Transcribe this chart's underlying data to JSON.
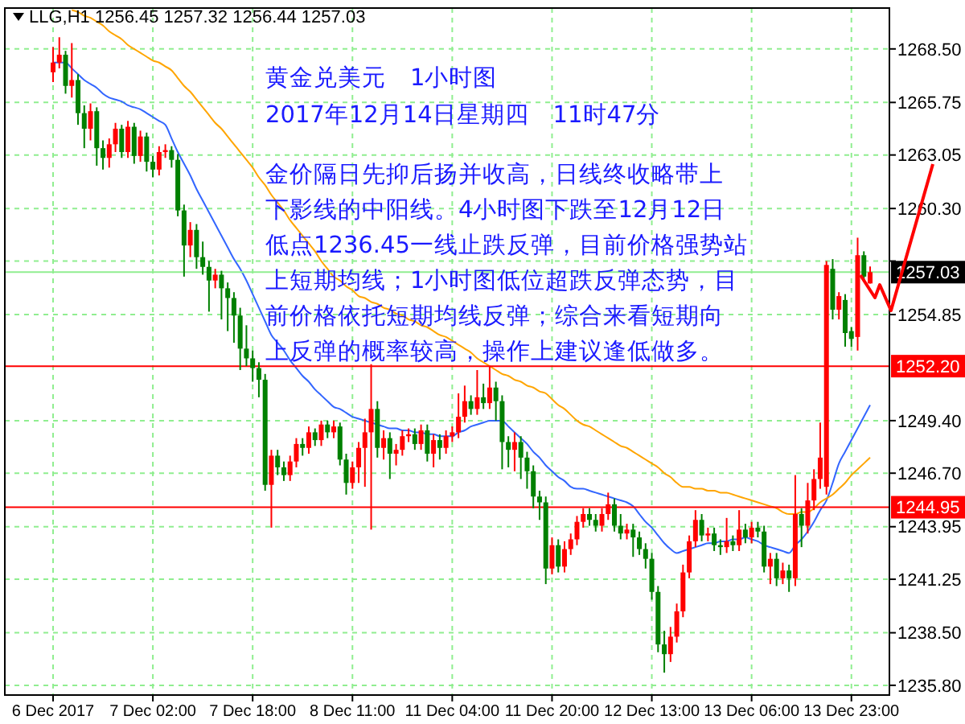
{
  "chart_data": {
    "type": "candlestick",
    "title": "LLG,H1  1256.45 1257.32 1256.44 1257.03",
    "categories": [
      "6 Dec 2017",
      null,
      null,
      null,
      null,
      null,
      null,
      null,
      null,
      null,
      null,
      null,
      null,
      null,
      null,
      null,
      "7 Dec 02:00",
      null,
      null,
      null,
      null,
      null,
      null,
      null,
      null,
      null,
      null,
      null,
      null,
      null,
      null,
      null,
      "7 Dec 18:00",
      null,
      null,
      null,
      null,
      null,
      null,
      null,
      null,
      null,
      null,
      null,
      null,
      null,
      null,
      null,
      "8 Dec 11:00",
      null,
      null,
      null,
      null,
      null,
      null,
      null,
      null,
      null,
      null,
      null,
      null,
      null,
      null,
      null,
      "11 Dec 04:00",
      null,
      null,
      null,
      null,
      null,
      null,
      null,
      null,
      null,
      null,
      null,
      null,
      null,
      null,
      null,
      "11 Dec 20:00",
      null,
      null,
      null,
      null,
      null,
      null,
      null,
      null,
      null,
      null,
      null,
      null,
      null,
      null,
      null,
      "12 Dec 13:00",
      null,
      null,
      null,
      null,
      null,
      null,
      null,
      null,
      null,
      null,
      null,
      null,
      null,
      null,
      null,
      "13 Dec 06:00",
      null,
      null,
      null,
      null,
      null,
      null,
      null,
      null,
      null,
      null,
      null,
      null,
      null,
      null,
      null,
      "13 Dec 23:00",
      null,
      null,
      null
    ],
    "ohlc": [
      [
        1267.3,
        1268.6,
        1266.8,
        1267.8
      ],
      [
        1267.8,
        1269.1,
        1267.5,
        1268.2
      ],
      [
        1268.2,
        1268.4,
        1266.2,
        1266.6
      ],
      [
        1266.6,
        1268.8,
        1266.0,
        1266.9
      ],
      [
        1266.9,
        1267.2,
        1264.6,
        1265.2
      ],
      [
        1265.2,
        1265.6,
        1263.4,
        1264.4
      ],
      [
        1264.4,
        1265.7,
        1263.8,
        1265.3
      ],
      [
        1265.3,
        1265.5,
        1262.5,
        1263.4
      ],
      [
        1263.4,
        1263.8,
        1262.3,
        1262.9
      ],
      [
        1262.9,
        1263.9,
        1262.4,
        1263.6
      ],
      [
        1263.6,
        1264.7,
        1263.2,
        1264.4
      ],
      [
        1264.4,
        1264.6,
        1262.9,
        1263.2
      ],
      [
        1263.2,
        1264.8,
        1262.9,
        1264.5
      ],
      [
        1264.5,
        1264.7,
        1262.6,
        1263.0
      ],
      [
        1263.0,
        1264.3,
        1262.7,
        1264.0
      ],
      [
        1264.0,
        1264.2,
        1262.2,
        1262.7
      ],
      [
        1262.7,
        1263.0,
        1261.9,
        1262.3
      ],
      [
        1262.3,
        1263.5,
        1262.0,
        1263.2
      ],
      [
        1263.2,
        1263.6,
        1262.9,
        1263.3
      ],
      [
        1263.3,
        1263.5,
        1262.4,
        1262.8
      ],
      [
        1262.8,
        1263.1,
        1259.9,
        1260.2
      ],
      [
        1260.2,
        1260.5,
        1256.8,
        1258.4
      ],
      [
        1258.4,
        1259.6,
        1257.8,
        1259.2
      ],
      [
        1259.2,
        1259.5,
        1257.2,
        1257.8
      ],
      [
        1257.8,
        1258.6,
        1256.9,
        1257.3
      ],
      [
        1257.3,
        1257.6,
        1255.0,
        1256.6
      ],
      [
        1256.6,
        1257.2,
        1256.2,
        1256.9
      ],
      [
        1256.9,
        1257.1,
        1254.6,
        1256.2
      ],
      [
        1256.2,
        1256.5,
        1254.0,
        1255.7
      ],
      [
        1255.7,
        1256.0,
        1253.4,
        1254.8
      ],
      [
        1254.8,
        1255.2,
        1252.0,
        1253.1
      ],
      [
        1253.1,
        1254.3,
        1252.2,
        1252.6
      ],
      [
        1252.6,
        1253.0,
        1251.4,
        1252.1
      ],
      [
        1252.1,
        1252.4,
        1250.6,
        1251.5
      ],
      [
        1251.5,
        1251.8,
        1245.8,
        1246.1
      ],
      [
        1246.1,
        1247.9,
        1243.9,
        1247.6
      ],
      [
        1247.6,
        1247.9,
        1246.6,
        1247.0
      ],
      [
        1247.0,
        1247.3,
        1246.3,
        1246.6
      ],
      [
        1246.6,
        1247.6,
        1246.3,
        1247.3
      ],
      [
        1247.3,
        1248.5,
        1247.0,
        1248.2
      ],
      [
        1248.2,
        1248.5,
        1247.6,
        1248.0
      ],
      [
        1248.0,
        1249.1,
        1247.7,
        1248.8
      ],
      [
        1248.8,
        1249.0,
        1248.1,
        1248.4
      ],
      [
        1248.4,
        1249.4,
        1248.1,
        1249.2
      ],
      [
        1249.2,
        1249.4,
        1248.5,
        1248.8
      ],
      [
        1248.8,
        1249.4,
        1248.5,
        1249.1
      ],
      [
        1249.1,
        1249.3,
        1247.1,
        1247.4
      ],
      [
        1247.4,
        1247.7,
        1245.6,
        1246.2
      ],
      [
        1246.2,
        1247.3,
        1245.9,
        1247.0
      ],
      [
        1247.0,
        1248.3,
        1246.2,
        1248.0
      ],
      [
        1248.0,
        1249.5,
        1246.0,
        1248.8
      ],
      [
        1248.8,
        1252.3,
        1243.8,
        1250.0
      ],
      [
        1250.0,
        1250.4,
        1247.5,
        1248.0
      ],
      [
        1248.0,
        1248.9,
        1247.4,
        1248.5
      ],
      [
        1248.5,
        1248.8,
        1246.4,
        1247.7
      ],
      [
        1247.7,
        1248.2,
        1247.1,
        1247.9
      ],
      [
        1247.9,
        1248.9,
        1247.6,
        1248.6
      ],
      [
        1248.6,
        1249.0,
        1248.3,
        1248.7
      ],
      [
        1248.7,
        1249.0,
        1247.9,
        1248.2
      ],
      [
        1248.2,
        1249.2,
        1247.9,
        1248.9
      ],
      [
        1248.9,
        1249.2,
        1247.3,
        1247.7
      ],
      [
        1247.7,
        1248.7,
        1247.0,
        1248.4
      ],
      [
        1248.4,
        1248.7,
        1247.4,
        1248.0
      ],
      [
        1248.0,
        1248.9,
        1247.7,
        1248.6
      ],
      [
        1248.6,
        1249.1,
        1248.3,
        1248.8
      ],
      [
        1248.8,
        1250.8,
        1248.5,
        1249.6
      ],
      [
        1249.6,
        1251.2,
        1249.3,
        1250.4
      ],
      [
        1250.4,
        1250.7,
        1249.7,
        1250.0
      ],
      [
        1250.0,
        1252.0,
        1249.7,
        1250.6
      ],
      [
        1250.6,
        1251.3,
        1250.0,
        1250.3
      ],
      [
        1250.3,
        1252.2,
        1250.0,
        1251.1
      ],
      [
        1251.1,
        1251.4,
        1249.4,
        1250.4
      ],
      [
        1250.4,
        1250.7,
        1246.9,
        1248.3
      ],
      [
        1248.3,
        1248.6,
        1247.0,
        1247.9
      ],
      [
        1247.9,
        1248.8,
        1246.8,
        1248.3
      ],
      [
        1248.3,
        1248.6,
        1246.4,
        1247.5
      ],
      [
        1247.5,
        1247.8,
        1245.9,
        1246.8
      ],
      [
        1246.8,
        1247.1,
        1244.9,
        1245.5
      ],
      [
        1245.5,
        1245.8,
        1244.3,
        1245.2
      ],
      [
        1245.2,
        1245.5,
        1241.0,
        1241.8
      ],
      [
        1241.8,
        1243.4,
        1241.5,
        1243.0
      ],
      [
        1243.0,
        1243.3,
        1241.6,
        1241.9
      ],
      [
        1241.9,
        1243.2,
        1241.6,
        1242.8
      ],
      [
        1242.8,
        1243.6,
        1242.5,
        1243.3
      ],
      [
        1243.3,
        1244.5,
        1243.0,
        1244.2
      ],
      [
        1244.2,
        1244.9,
        1243.9,
        1244.6
      ],
      [
        1244.6,
        1244.9,
        1244.0,
        1244.3
      ],
      [
        1244.3,
        1244.6,
        1243.7,
        1244.0
      ],
      [
        1244.0,
        1244.9,
        1243.7,
        1244.6
      ],
      [
        1244.6,
        1245.7,
        1244.3,
        1245.1
      ],
      [
        1245.1,
        1245.4,
        1243.7,
        1244.0
      ],
      [
        1244.0,
        1244.6,
        1243.3,
        1243.6
      ],
      [
        1243.6,
        1244.1,
        1243.3,
        1243.8
      ],
      [
        1243.8,
        1244.1,
        1242.4,
        1243.4
      ],
      [
        1243.4,
        1243.7,
        1242.5,
        1242.8
      ],
      [
        1242.8,
        1243.1,
        1241.8,
        1242.3
      ],
      [
        1242.3,
        1242.6,
        1240.2,
        1240.6
      ],
      [
        1240.6,
        1240.9,
        1237.5,
        1237.9
      ],
      [
        1237.9,
        1238.6,
        1236.45,
        1237.4
      ],
      [
        1237.4,
        1238.8,
        1237.0,
        1238.3
      ],
      [
        1238.3,
        1240.0,
        1238.0,
        1239.6
      ],
      [
        1239.6,
        1242.0,
        1239.3,
        1241.6
      ],
      [
        1241.6,
        1243.5,
        1241.3,
        1243.2
      ],
      [
        1243.2,
        1244.8,
        1242.9,
        1244.3
      ],
      [
        1244.3,
        1244.6,
        1243.2,
        1243.5
      ],
      [
        1243.5,
        1243.9,
        1243.2,
        1243.6
      ],
      [
        1243.6,
        1243.9,
        1242.7,
        1243.0
      ],
      [
        1243.0,
        1243.3,
        1242.5,
        1242.9
      ],
      [
        1242.9,
        1244.4,
        1242.6,
        1243.2
      ],
      [
        1243.2,
        1243.5,
        1242.7,
        1243.0
      ],
      [
        1243.0,
        1244.8,
        1242.7,
        1243.8
      ],
      [
        1243.8,
        1244.1,
        1243.1,
        1243.4
      ],
      [
        1243.4,
        1244.2,
        1243.1,
        1243.9
      ],
      [
        1243.9,
        1244.2,
        1243.4,
        1243.7
      ],
      [
        1243.7,
        1244.0,
        1241.6,
        1241.9
      ],
      [
        1241.9,
        1242.6,
        1241.0,
        1242.3
      ],
      [
        1242.3,
        1242.6,
        1240.9,
        1241.3
      ],
      [
        1241.3,
        1242.1,
        1241.0,
        1241.7
      ],
      [
        1241.7,
        1242.0,
        1240.6,
        1241.3
      ],
      [
        1241.3,
        1246.6,
        1240.9,
        1244.6
      ],
      [
        1244.6,
        1244.9,
        1242.9,
        1244.0
      ],
      [
        1244.0,
        1246.2,
        1243.6,
        1245.3
      ],
      [
        1245.3,
        1246.9,
        1244.8,
        1246.4
      ],
      [
        1246.4,
        1249.3,
        1245.9,
        1247.5
      ],
      [
        1246.0,
        1257.6,
        1245.6,
        1257.4
      ],
      [
        1257.2,
        1257.7,
        1254.6,
        1255.1
      ],
      [
        1255.1,
        1256.0,
        1254.6,
        1255.8
      ],
      [
        1255.6,
        1255.9,
        1253.2,
        1253.9
      ],
      [
        1254.0,
        1254.2,
        1253.2,
        1253.6
      ],
      [
        1253.7,
        1258.8,
        1253.0,
        1257.9
      ],
      [
        1257.9,
        1258.1,
        1256.6,
        1256.8
      ],
      [
        1256.45,
        1257.32,
        1256.44,
        1257.03
      ]
    ],
    "colors": [
      "#ff0000",
      "#ff0000",
      "#008000",
      "#ff0000",
      "#008000",
      "#008000",
      "#ff0000",
      "#008000",
      "#008000",
      "#ff0000",
      "#ff0000",
      "#008000",
      "#ff0000",
      "#008000",
      "#ff0000",
      "#008000",
      "#008000",
      "#ff0000",
      "#ff0000",
      "#008000",
      "#008000",
      "#008000",
      "#ff0000",
      "#008000",
      "#008000",
      "#008000",
      "#ff0000",
      "#008000",
      "#008000",
      "#008000",
      "#008000",
      "#008000",
      "#008000",
      "#008000",
      "#008000",
      "#ff0000",
      "#008000",
      "#008000",
      "#ff0000",
      "#ff0000",
      "#008000",
      "#ff0000",
      "#008000",
      "#ff0000",
      "#008000",
      "#ff0000",
      "#008000",
      "#008000",
      "#ff0000",
      "#ff0000",
      "#ff0000",
      "#ff0000",
      "#008000",
      "#ff0000",
      "#008000",
      "#ff0000",
      "#ff0000",
      "#ff0000",
      "#008000",
      "#ff0000",
      "#008000",
      "#ff0000",
      "#008000",
      "#ff0000",
      "#ff0000",
      "#ff0000",
      "#ff0000",
      "#008000",
      "#ff0000",
      "#008000",
      "#ff0000",
      "#008000",
      "#008000",
      "#008000",
      "#ff0000",
      "#008000",
      "#008000",
      "#008000",
      "#008000",
      "#008000",
      "#ff0000",
      "#008000",
      "#ff0000",
      "#ff0000",
      "#ff0000",
      "#ff0000",
      "#008000",
      "#008000",
      "#ff0000",
      "#ff0000",
      "#008000",
      "#008000",
      "#ff0000",
      "#008000",
      "#008000",
      "#008000",
      "#008000",
      "#008000",
      "#008000",
      "#ff0000",
      "#ff0000",
      "#ff0000",
      "#ff0000",
      "#ff0000",
      "#008000",
      "#ff0000",
      "#008000",
      "#008000",
      "#ff0000",
      "#008000",
      "#ff0000",
      "#008000",
      "#ff0000",
      "#008000",
      "#008000",
      "#ff0000",
      "#008000",
      "#ff0000",
      "#008000",
      "#ff0000",
      "#008000",
      "#ff0000",
      "#ff0000",
      "#ff0000",
      "#ff0000",
      "#008000",
      "#ff0000",
      "#008000",
      "#008000",
      "#ff0000",
      "#008000",
      "#ff0000"
    ],
    "series": [
      {
        "type": "line",
        "color": "#3366ff",
        "values": [
          1267.8,
          1267.8,
          1267.8,
          1267.5,
          1267.2,
          1266.9,
          1266.7,
          1266.5,
          1266.2,
          1266.0,
          1265.9,
          1265.8,
          1265.6,
          1265.5,
          1265.4,
          1265.2,
          1265.0,
          1264.8,
          1264.6,
          1263.9,
          1263.2,
          1262.6,
          1262.0,
          1261.3,
          1260.7,
          1260.1,
          1259.5,
          1258.9,
          1258.3,
          1257.7,
          1257.2,
          1256.6,
          1255.9,
          1255.2,
          1254.5,
          1253.8,
          1253.4,
          1253.0,
          1252.5,
          1252.1,
          1251.7,
          1251.4,
          1251.0,
          1250.7,
          1250.4,
          1250.1,
          1250.0,
          1249.8,
          1249.6,
          1249.5,
          1249.4,
          1249.3,
          1249.2,
          1249.1,
          1249.0,
          1249.0,
          1248.9,
          1248.9,
          1248.8,
          1248.8,
          1248.7,
          1248.7,
          1248.6,
          1248.6,
          1248.6,
          1248.8,
          1248.9,
          1249.1,
          1249.2,
          1249.3,
          1249.4,
          1249.4,
          1249.4,
          1249.1,
          1248.8,
          1248.5,
          1248.2,
          1247.8,
          1247.5,
          1247.1,
          1246.8,
          1246.5,
          1246.3,
          1246.0,
          1245.9,
          1245.9,
          1245.8,
          1245.7,
          1245.6,
          1245.5,
          1245.4,
          1245.3,
          1245.2,
          1245.0,
          1244.6,
          1244.2,
          1243.9,
          1243.5,
          1243.1,
          1242.8,
          1242.6,
          1242.7,
          1242.8,
          1242.9,
          1243.0,
          1243.1,
          1243.1,
          1243.2,
          1243.2,
          1243.3,
          1243.3,
          1243.4,
          1243.3,
          1243.2,
          1243.0,
          1242.9,
          1242.8,
          1242.7,
          1242.6,
          1243.0,
          1243.3,
          1243.7,
          1244.2,
          1244.8,
          1245.3,
          1246.2,
          1247.2,
          1247.8,
          1248.4,
          1249.0,
          1249.6,
          1250.2
        ]
      },
      {
        "type": "line",
        "color": "#ffa500",
        "values": [
          null,
          null,
          null,
          1270.5,
          1270.4,
          1270.2,
          1270.1,
          1269.9,
          1269.7,
          1269.4,
          1269.2,
          1269.0,
          1268.7,
          1268.5,
          1268.3,
          1268.1,
          1267.9,
          1267.8,
          1267.6,
          1267.4,
          1267.0,
          1266.6,
          1266.3,
          1265.9,
          1265.5,
          1265.1,
          1264.7,
          1264.4,
          1264.0,
          1263.6,
          1263.2,
          1262.8,
          1262.4,
          1261.9,
          1261.5,
          1261.0,
          1260.6,
          1260.2,
          1259.7,
          1259.3,
          1258.9,
          1258.5,
          1258.1,
          1257.6,
          1257.2,
          1256.8,
          1256.6,
          1256.3,
          1256.1,
          1255.8,
          1255.7,
          1255.5,
          1255.4,
          1255.2,
          1255.1,
          1254.9,
          1254.8,
          1254.6,
          1254.5,
          1254.3,
          1254.2,
          1254.0,
          1253.8,
          1253.7,
          1253.5,
          1253.3,
          1253.1,
          1252.9,
          1252.6,
          1252.4,
          1252.2,
          1252.0,
          1251.8,
          1251.7,
          1251.5,
          1251.4,
          1251.2,
          1251.1,
          1250.9,
          1250.8,
          1250.5,
          1250.2,
          1250.0,
          1249.7,
          1249.4,
          1249.2,
          1249.1,
          1248.9,
          1248.7,
          1248.5,
          1248.3,
          1248.1,
          1248.0,
          1247.8,
          1247.6,
          1247.4,
          1247.2,
          1247.0,
          1246.7,
          1246.5,
          1246.2,
          1246.0,
          1246.0,
          1245.9,
          1245.9,
          1245.8,
          1245.8,
          1245.7,
          1245.7,
          1245.6,
          1245.5,
          1245.4,
          1245.3,
          1245.2,
          1245.1,
          1245.0,
          1244.9,
          1244.7,
          1244.6,
          1244.6,
          1244.7,
          1244.7,
          1244.9,
          1245.2,
          1245.4,
          1245.6,
          1245.9,
          1246.2,
          1246.6,
          1246.9,
          1247.2,
          1247.5
        ]
      }
    ],
    "ylim": [
      1235.3,
      1270.6
    ],
    "yticks": [
      {
        "value": 1268.5,
        "label": "1268.50"
      },
      {
        "value": 1265.75,
        "label": "1265.75"
      },
      {
        "value": 1263.05,
        "label": "1263.05"
      },
      {
        "value": 1260.3,
        "label": "1260.30"
      },
      {
        "value": 1257.6,
        "label": null
      },
      {
        "value": 1254.85,
        "label": "1254.85"
      },
      {
        "value": 1249.4,
        "label": "1249.40"
      },
      {
        "value": 1246.7,
        "label": "1246.70"
      },
      {
        "value": 1243.95,
        "label": "1243.95"
      },
      {
        "value": 1241.25,
        "label": "1241.25"
      },
      {
        "value": 1238.5,
        "label": "1238.50"
      },
      {
        "value": 1235.8,
        "label": "1235.80"
      }
    ],
    "ref_lines": [
      {
        "axis": "y",
        "value": 1252.2,
        "label": "1252.20",
        "color": "#ff0000"
      },
      {
        "axis": "y",
        "value": 1244.95,
        "label": "1244.95",
        "color": "#ff0000"
      },
      {
        "axis": "y",
        "value": 1257.03,
        "label": "1257.03",
        "color": "#90ee90"
      }
    ],
    "grid": true,
    "annotations": [
      "黄金兑美元　1小时图",
      "2017年12月14日星期四　11时47分",
      "金价隔日先抑后扬并收高，日线终收略带上",
      "下影线的中阳线。4小时图下跌至12月12日",
      "低点1236.45一线止跌反弹，目前价格强势站",
      "上短期均线；1小时图低位超跌反弹态势，目",
      "前价格依托短期均线反弹；综合来看短期向",
      "上反弹的概率较高，操作上建议逢低做多。"
    ]
  }
}
